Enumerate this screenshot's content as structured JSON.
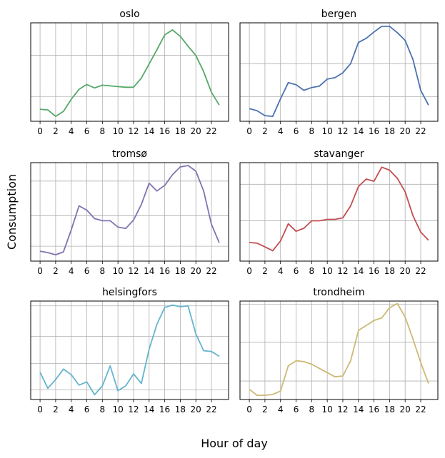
{
  "figure": {
    "supxlabel": "Hour of day",
    "supylabel": "Consumption"
  },
  "chart_data": [
    {
      "type": "line",
      "title": "oslo",
      "color": "#55a868",
      "x": [
        0,
        1,
        2,
        3,
        4,
        5,
        6,
        7,
        8,
        9,
        10,
        11,
        12,
        13,
        14,
        15,
        16,
        17,
        18,
        19,
        20,
        21,
        22,
        23
      ],
      "y": [
        0.12,
        0.11,
        0.02,
        0.09,
        0.26,
        0.4,
        0.47,
        0.42,
        0.46,
        0.45,
        0.44,
        0.43,
        0.43,
        0.56,
        0.76,
        0.96,
        1.17,
        1.24,
        1.15,
        1.01,
        0.88,
        0.65,
        0.36,
        0.18
      ],
      "ylim": [
        -0.05,
        1.34
      ],
      "grid_y": [
        0.3,
        0.88
      ],
      "xticks": [
        0,
        2,
        4,
        6,
        8,
        10,
        12,
        14,
        16,
        18,
        20,
        22
      ],
      "xticklabels": [
        "0",
        "2",
        "4",
        "6",
        "8",
        "10",
        "12",
        "14",
        "16",
        "18",
        "20",
        "22"
      ]
    },
    {
      "type": "line",
      "title": "bergen",
      "color": "#4c72b0",
      "x": [
        0,
        1,
        2,
        3,
        4,
        5,
        6,
        7,
        8,
        9,
        10,
        11,
        12,
        13,
        14,
        15,
        16,
        17,
        18,
        19,
        20,
        21,
        22,
        23
      ],
      "y": [
        0.08,
        0.05,
        -0.02,
        -0.03,
        0.22,
        0.45,
        0.42,
        0.34,
        0.38,
        0.4,
        0.5,
        0.52,
        0.59,
        0.72,
        1.02,
        1.08,
        1.17,
        1.25,
        1.25,
        1.16,
        1.05,
        0.78,
        0.34,
        0.13
      ],
      "ylim": [
        -0.1,
        1.3
      ],
      "grid_y": [
        0.25,
        0.72
      ],
      "xticks": [
        0,
        2,
        4,
        6,
        8,
        10,
        12,
        14,
        16,
        18,
        20,
        22
      ],
      "xticklabels": [
        "0",
        "2",
        "4",
        "6",
        "8",
        "10",
        "12",
        "14",
        "16",
        "18",
        "20",
        "22"
      ]
    },
    {
      "type": "line",
      "title": "tromsø",
      "color": "#8172b2",
      "x": [
        0,
        1,
        2,
        3,
        4,
        5,
        6,
        7,
        8,
        9,
        10,
        11,
        12,
        13,
        14,
        15,
        16,
        17,
        18,
        19,
        20,
        21,
        22,
        23
      ],
      "y": [
        0.08,
        0.06,
        0.03,
        0.07,
        0.38,
        0.72,
        0.66,
        0.54,
        0.51,
        0.51,
        0.42,
        0.4,
        0.52,
        0.74,
        1.04,
        0.93,
        1.01,
        1.16,
        1.27,
        1.29,
        1.21,
        0.93,
        0.46,
        0.2
      ],
      "ylim": [
        -0.06,
        1.33
      ],
      "grid_y": [
        0.15,
        0.58,
        1.07
      ],
      "xticks": [
        0,
        2,
        4,
        6,
        8,
        10,
        12,
        14,
        16,
        18,
        20,
        22
      ],
      "xticklabels": [
        "0",
        "2",
        "4",
        "6",
        "8",
        "10",
        "12",
        "14",
        "16",
        "18",
        "20",
        "22"
      ]
    },
    {
      "type": "line",
      "title": "stavanger",
      "color": "#c44e52",
      "x": [
        0,
        1,
        2,
        3,
        4,
        5,
        6,
        7,
        8,
        9,
        10,
        11,
        12,
        13,
        14,
        15,
        16,
        17,
        18,
        19,
        20,
        21,
        22,
        23
      ],
      "y": [
        0.15,
        0.14,
        0.09,
        0.04,
        0.17,
        0.4,
        0.3,
        0.34,
        0.44,
        0.44,
        0.46,
        0.46,
        0.48,
        0.64,
        0.9,
        1.0,
        0.97,
        1.16,
        1.12,
        1.01,
        0.83,
        0.51,
        0.29,
        0.18
      ],
      "ylim": [
        -0.1,
        1.22
      ],
      "grid_y": [
        0.44,
        0.93
      ],
      "xticks": [
        0,
        2,
        4,
        6,
        8,
        10,
        12,
        14,
        16,
        18,
        20,
        22
      ],
      "xticklabels": [
        "0",
        "2",
        "4",
        "6",
        "8",
        "10",
        "12",
        "14",
        "16",
        "18",
        "20",
        "22"
      ]
    },
    {
      "type": "line",
      "title": "helsingfors",
      "color": "#64b5cd",
      "x": [
        0,
        1,
        2,
        3,
        4,
        5,
        6,
        7,
        8,
        9,
        10,
        11,
        12,
        13,
        14,
        15,
        16,
        17,
        18,
        19,
        20,
        21,
        22,
        23
      ],
      "y": [
        0.27,
        0.07,
        0.18,
        0.31,
        0.24,
        0.11,
        0.15,
        -0.01,
        0.1,
        0.35,
        0.04,
        0.1,
        0.25,
        0.13,
        0.56,
        0.87,
        1.08,
        1.11,
        1.09,
        1.1,
        0.75,
        0.54,
        0.53,
        0.47
      ],
      "ylim": [
        -0.07,
        1.16
      ],
      "grid_y": [
        0.05,
        0.38,
        0.72,
        1.1
      ],
      "xticks": [
        0,
        2,
        4,
        6,
        8,
        10,
        12,
        14,
        16,
        18,
        20,
        22
      ],
      "xticklabels": [
        "0",
        "2",
        "4",
        "6",
        "8",
        "10",
        "12",
        "14",
        "16",
        "18",
        "20",
        "22"
      ]
    },
    {
      "type": "line",
      "title": "trondheim",
      "color": "#ccb974",
      "x": [
        0,
        1,
        2,
        3,
        4,
        5,
        6,
        7,
        8,
        9,
        10,
        11,
        12,
        13,
        14,
        15,
        16,
        17,
        18,
        19,
        20,
        21,
        22,
        23
      ],
      "y": [
        0.07,
        0.0,
        0.0,
        0.01,
        0.05,
        0.35,
        0.41,
        0.4,
        0.37,
        0.32,
        0.27,
        0.22,
        0.23,
        0.41,
        0.77,
        0.83,
        0.89,
        0.92,
        1.04,
        1.09,
        0.93,
        0.67,
        0.39,
        0.14
      ],
      "ylim": [
        -0.05,
        1.12
      ],
      "grid_y": [
        0.17,
        0.63,
        1.08
      ],
      "xticks": [
        0,
        2,
        4,
        6,
        8,
        10,
        12,
        14,
        16,
        18,
        20,
        22
      ],
      "xticklabels": [
        "0",
        "2",
        "4",
        "6",
        "8",
        "10",
        "12",
        "14",
        "16",
        "18",
        "20",
        "22"
      ]
    }
  ]
}
